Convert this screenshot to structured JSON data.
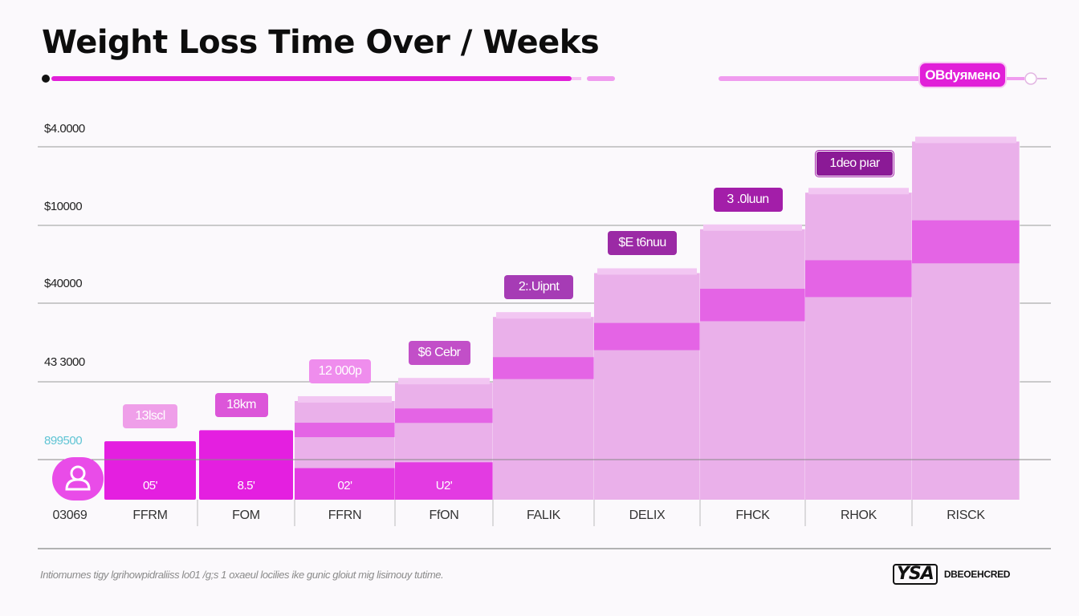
{
  "title": "Weight Loss Time Over / Weeks",
  "legend": {
    "label": "OBdyямено"
  },
  "footnote": "Intiomumes tigy lgrihowpidraliiss lo01 /g;s  1 oxaeul locilies ike gunic  gloiut  mig lisimouy tutime.",
  "brand": {
    "mark": "YSA",
    "text": "DBEOEHCRED"
  },
  "colors": {
    "accent": "#e11fd8",
    "bar_dark": "#e23fe0",
    "bar_light": "#ebb0eb",
    "grid": "#8c8c8c",
    "text": "#0d0d0d"
  },
  "chart_data": {
    "type": "bar",
    "title": "Weight Loss Time Over / Weeks",
    "x_first_label": "03069",
    "categories": [
      "FFRM",
      "FOM",
      "FFRN",
      "FfON",
      "FALIK",
      "DELIX",
      "FHCK",
      "RHOK",
      "RISCK"
    ],
    "y_tick_labels": [
      "$4.0000",
      "$10000",
      "$40000",
      "43 3000",
      "899500"
    ],
    "values": [
      0.8,
      0.95,
      1.35,
      1.6,
      2.5,
      3.1,
      3.7,
      4.2,
      4.9
    ],
    "bar_value_labels": [
      "05'",
      "8.5'",
      "02'",
      "U2'",
      "",
      "",
      "",
      "",
      ""
    ],
    "callouts": [
      "13lscl",
      "18km",
      "12 000p",
      "$6 Cebr",
      "2:.Uipnt",
      "$E t6nuu",
      "3 .0luun",
      "1deo pıar",
      ""
    ],
    "ylim": [
      0,
      5.3
    ],
    "grid": true,
    "legend_position": "top-right"
  }
}
